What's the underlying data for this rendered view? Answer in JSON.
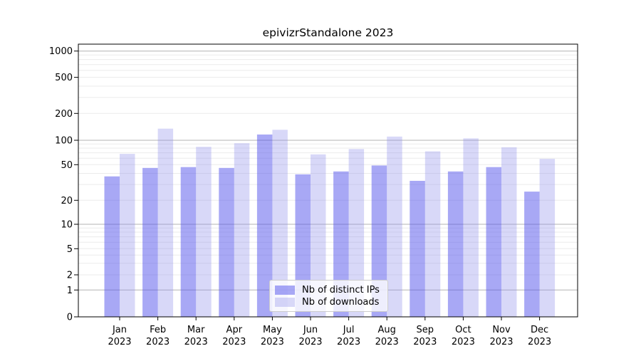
{
  "chart_data": {
    "type": "bar",
    "title": "epivizrStandalone 2023",
    "categories": [
      "Jan",
      "Feb",
      "Mar",
      "Apr",
      "May",
      "Jun",
      "Jul",
      "Aug",
      "Sep",
      "Oct",
      "Nov",
      "Dec"
    ],
    "year_label": "2023",
    "series": [
      {
        "name": "Nb of distinct IPs",
        "color": "rgba(82,82,235,0.50)",
        "solid_equivalent": "#a8a8f5",
        "values": [
          37,
          46,
          47,
          46,
          116,
          39,
          42,
          49,
          33,
          42,
          47,
          25
        ]
      },
      {
        "name": "Nb of downloads",
        "color": "rgba(140,140,235,0.34)",
        "solid_equivalent": "#d8d8f8",
        "values": [
          68,
          135,
          83,
          92,
          131,
          67,
          78,
          110,
          73,
          105,
          82,
          59
        ]
      }
    ],
    "y_axis": {
      "scale": "asinh-log",
      "ticks": [
        0,
        1,
        2,
        5,
        10,
        20,
        50,
        100,
        200,
        500,
        1000
      ],
      "range": [
        0,
        1300
      ]
    },
    "grid": {
      "major": [
        1,
        10,
        100,
        1000
      ],
      "minor_decades": [
        1,
        10,
        100
      ],
      "minor_per_decade": [
        2,
        3,
        4,
        5,
        6,
        7,
        8,
        9
      ]
    },
    "legend": {
      "position": "lower center"
    },
    "colors": {
      "major_grid": "#b3b3b3",
      "minor_grid": "#ebebeb",
      "axis": "#000000",
      "background": "#ffffff"
    }
  }
}
